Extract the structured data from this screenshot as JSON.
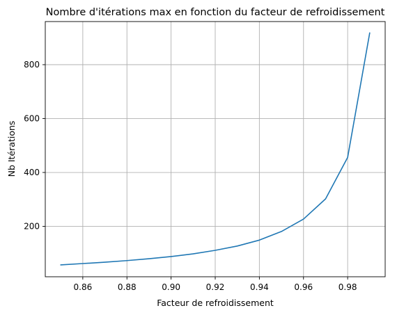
{
  "chart_data": {
    "type": "line",
    "title": "Nombre d'itérations max en fonction du facteur de refroidissement",
    "xlabel": "Facteur de refroidissement",
    "ylabel": "Nb Itérations",
    "xlim": [
      0.843,
      0.997
    ],
    "ylim": [
      13,
      960
    ],
    "grid": true,
    "xticks": [
      0.86,
      0.88,
      0.9,
      0.92,
      0.94,
      0.96,
      0.98
    ],
    "xtick_labels": [
      "0.86",
      "0.88",
      "0.90",
      "0.92",
      "0.94",
      "0.96",
      "0.98"
    ],
    "yticks": [
      200,
      400,
      600,
      800
    ],
    "ytick_labels": [
      "200",
      "400",
      "600",
      "800"
    ],
    "series": [
      {
        "color": "#1f77b4",
        "x": [
          0.85,
          0.86,
          0.87,
          0.88,
          0.89,
          0.9,
          0.91,
          0.92,
          0.93,
          0.94,
          0.95,
          0.96,
          0.97,
          0.98,
          0.99
        ],
        "y": [
          57,
          62,
          67,
          73,
          80,
          88,
          98,
          111,
          127,
          149,
          181,
          227,
          302,
          456,
          918
        ]
      }
    ]
  }
}
